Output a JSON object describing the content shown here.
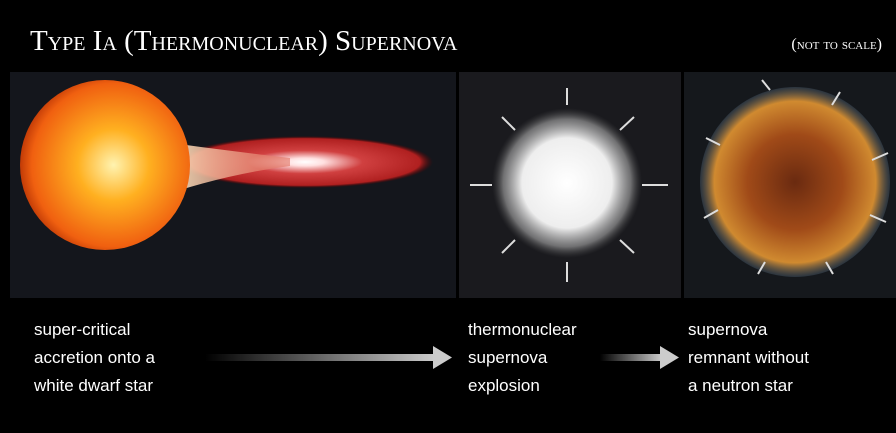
{
  "header": {
    "title": "Type Ia (Thermonuclear) Supernova",
    "note": "(not to scale)"
  },
  "stages": [
    {
      "lines": [
        "super-critical",
        "accretion onto a",
        "white dwarf star"
      ]
    },
    {
      "lines": [
        "thermonuclear",
        "supernova",
        "explosion"
      ]
    },
    {
      "lines": [
        "supernova",
        "remnant without",
        "a neutron star"
      ]
    }
  ]
}
